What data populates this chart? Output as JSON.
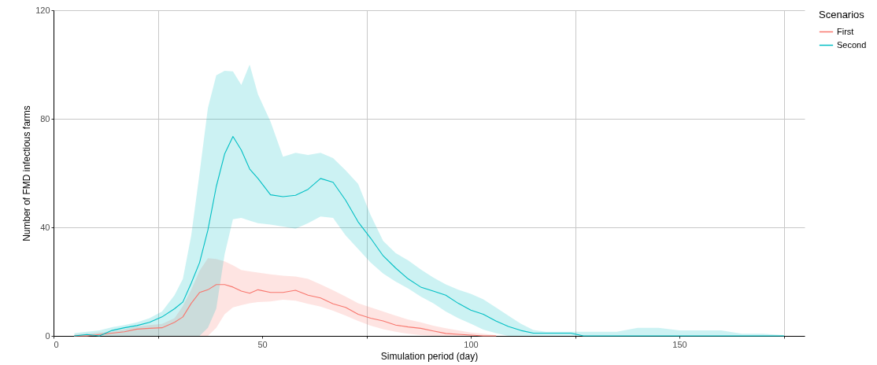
{
  "chart_data": {
    "type": "line",
    "xlabel": "Simulation period (day)",
    "ylabel": "Number of FMD infectious farms",
    "legend_title": "Scenarios",
    "legend": "right",
    "grid": true,
    "x": [
      5,
      8,
      11,
      14,
      17,
      20,
      23,
      26,
      29,
      31,
      33,
      35,
      37,
      39,
      41,
      43,
      45,
      47,
      49,
      52,
      55,
      58,
      61,
      64,
      67,
      70,
      73,
      76,
      79,
      82,
      85,
      88,
      91,
      94,
      97,
      100,
      103,
      106,
      109,
      112,
      115,
      118,
      121,
      124,
      127,
      130,
      135,
      140,
      145,
      150,
      155,
      160,
      165,
      170,
      175
    ],
    "xlim": [
      0,
      180
    ],
    "xticks": [
      0,
      {
        "value": 25,
        "label": null
      },
      50,
      {
        "value": 75,
        "label": null
      },
      100,
      {
        "value": 125,
        "label": null
      },
      150,
      {
        "value": 175,
        "label": null
      }
    ],
    "ylim": [
      0,
      120
    ],
    "yticks": [
      0,
      40,
      80,
      120
    ],
    "series": [
      {
        "name": "First",
        "color": "#f8766d",
        "values": [
          0,
          0,
          0.5,
          1,
          1.5,
          2.5,
          2.8,
          3,
          5,
          7,
          12,
          16,
          17,
          18.9,
          18.9,
          18,
          16.5,
          15.7,
          17,
          16,
          16,
          16.8,
          15,
          14,
          11.8,
          10.5,
          8,
          6.5,
          5.5,
          4,
          3.3,
          2.8,
          1.8,
          0.9,
          0.6,
          0.3,
          0,
          0,
          null,
          null,
          null,
          null,
          null,
          null,
          null,
          null,
          null,
          null,
          null,
          null,
          null,
          null,
          null,
          null,
          null
        ],
        "lower": [
          0,
          0,
          0,
          0,
          0,
          0,
          0,
          0,
          0,
          0,
          0,
          0,
          0,
          3,
          8,
          10.5,
          11.3,
          12,
          12.5,
          12.7,
          13.3,
          13,
          11.8,
          10.8,
          9.3,
          7.5,
          5.5,
          3.8,
          2.5,
          1.5,
          0.8,
          0.3,
          0,
          0,
          0,
          0,
          0,
          0,
          null,
          null,
          null,
          null,
          null,
          null,
          null,
          null,
          null,
          null,
          null,
          null,
          null,
          null,
          null,
          null,
          null
        ],
        "upper": [
          0.5,
          0.8,
          1.2,
          1.5,
          2.5,
          3.4,
          4,
          4.4,
          6.5,
          11,
          17,
          24,
          28.6,
          28.3,
          27.5,
          26,
          24.3,
          23.8,
          23.3,
          22.7,
          22.2,
          21.9,
          21,
          19,
          16.8,
          14.5,
          12,
          10.5,
          9,
          7.5,
          6,
          5,
          3.8,
          2.8,
          2,
          1.2,
          0.8,
          0.3,
          null,
          null,
          null,
          null,
          null,
          null,
          null,
          null,
          null,
          null,
          null,
          null,
          null,
          null,
          null,
          null,
          null
        ]
      },
      {
        "name": "Second",
        "color": "#00bfc4",
        "values": [
          0,
          0.5,
          0,
          2,
          3,
          3.8,
          5,
          7,
          10,
          12.5,
          19.4,
          27,
          39,
          55,
          67,
          73.5,
          68.5,
          61.5,
          58,
          52,
          51.3,
          51.8,
          54,
          58,
          56.6,
          50,
          42,
          36,
          29.5,
          25,
          21,
          18,
          16.5,
          15,
          12,
          9.5,
          8,
          5.5,
          3.5,
          2,
          1,
          1,
          1,
          1,
          0,
          0,
          0,
          0,
          0,
          0,
          0,
          0,
          0,
          0,
          0
        ],
        "lower": [
          0,
          0,
          0,
          0,
          0,
          0,
          0,
          0,
          0,
          0,
          0,
          0,
          3,
          10,
          30,
          43,
          43.5,
          42.5,
          41.5,
          41,
          40.3,
          39.5,
          41.5,
          44,
          43.5,
          37,
          32,
          27,
          23,
          20,
          17.5,
          14.5,
          12,
          9,
          6.5,
          4.5,
          2.3,
          1,
          0,
          0,
          0,
          0,
          0,
          0,
          0,
          0,
          0,
          0,
          0,
          0,
          0,
          0,
          0,
          0,
          0
        ],
        "upper": [
          1,
          1.5,
          2,
          3.2,
          4,
          5,
          6.5,
          9,
          15,
          21,
          37,
          60,
          84,
          96,
          97.7,
          97.5,
          92.5,
          100,
          89,
          79,
          66,
          67.5,
          66.7,
          67.5,
          65.5,
          61,
          56,
          44.5,
          35,
          30.5,
          27.8,
          24.5,
          21.5,
          19,
          17,
          15.5,
          13.5,
          10.5,
          7.5,
          4.5,
          2.2,
          1.5,
          1.5,
          1.5,
          1.5,
          1.5,
          1.5,
          3,
          3,
          2,
          2,
          2,
          0.8,
          0.8,
          0.3
        ]
      }
    ]
  }
}
